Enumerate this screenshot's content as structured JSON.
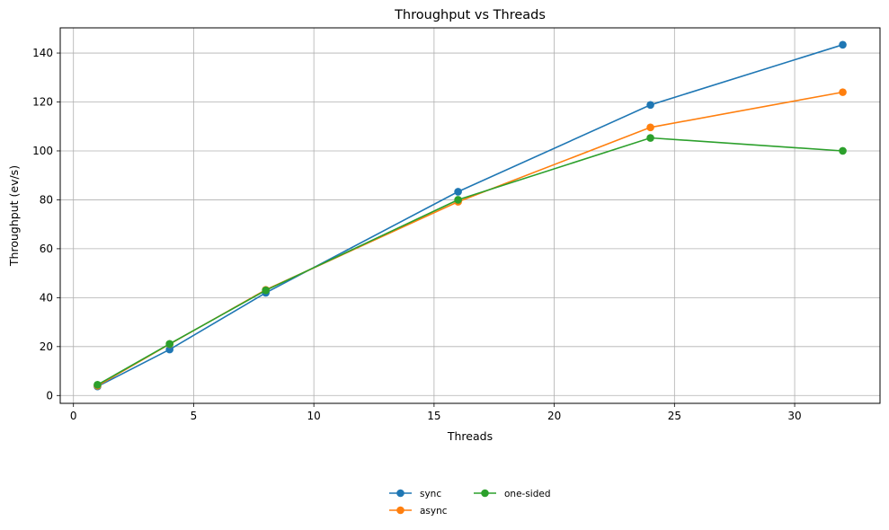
{
  "chart_data": {
    "type": "line",
    "title": "Throughput vs Threads",
    "xlabel": "Threads",
    "ylabel": "Throughput (ev/s)",
    "x": [
      1,
      4,
      8,
      16,
      24,
      32
    ],
    "xlim": [
      -0.55,
      33.55
    ],
    "ylim": [
      -3.2,
      150.3
    ],
    "xticks": [
      0,
      5,
      10,
      15,
      20,
      25,
      30
    ],
    "yticks": [
      0,
      20,
      40,
      60,
      80,
      100,
      120,
      140
    ],
    "grid": true,
    "legend_position": "bottom-center",
    "series": [
      {
        "name": "sync",
        "color": "#1f77b4",
        "values": [
          3.7,
          18.8,
          42.0,
          83.3,
          118.8,
          143.4
        ]
      },
      {
        "name": "async",
        "color": "#ff7f0e",
        "values": [
          4.0,
          21.0,
          43.2,
          79.2,
          109.6,
          124.0
        ]
      },
      {
        "name": "one-sided",
        "color": "#2ca02c",
        "values": [
          4.4,
          21.1,
          43.0,
          80.0,
          105.3,
          100.0
        ]
      }
    ]
  }
}
